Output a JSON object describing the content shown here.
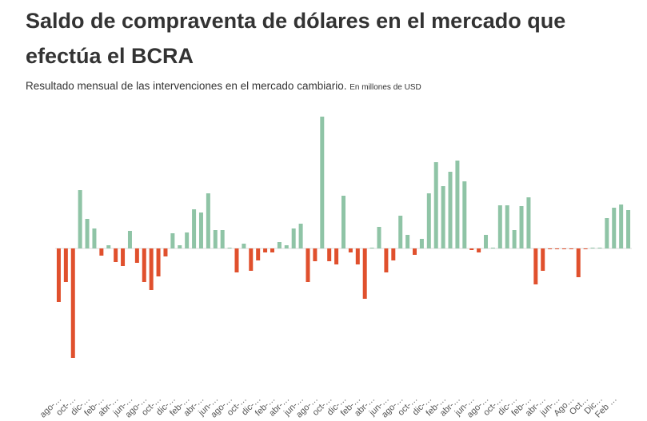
{
  "chart_data": {
    "type": "bar",
    "title": "Saldo de compraventa de dólares en el mercado que efectúa el BCRA",
    "subtitle": "Resultado  mensual de las intervenciones en el mercado cambiario.",
    "unit_note": "En millones de USD",
    "positive_color": "#8fc4a6",
    "negative_color": "#e0502d",
    "categories": [
      "ago-…",
      null,
      "oct-…",
      null,
      "dic-…",
      null,
      "feb-…",
      null,
      "abr-…",
      null,
      "jun-…",
      null,
      "ago-…",
      null,
      "oct-…",
      null,
      "dic-…",
      null,
      "feb-…",
      null,
      "abr-…",
      null,
      "jun-…",
      null,
      "ago-…",
      null,
      "oct-…",
      null,
      "dic-…",
      null,
      "feb-…",
      null,
      "abr-…",
      null,
      "jun-…",
      null,
      "ago-…",
      null,
      "oct-…",
      null,
      "dic-…",
      null,
      "feb-…",
      null,
      "abr-…",
      null,
      "jun-…",
      null,
      "ago-…",
      null,
      "oct-…",
      null,
      "dic-…",
      null,
      "feb-…",
      null,
      "abr-…",
      null,
      "jun-…",
      null,
      "ago-…",
      null,
      "oct-…",
      null,
      "dic-…",
      null,
      "feb-…",
      null,
      "abr-…",
      null,
      "jun-…",
      null,
      "Ago…",
      null,
      "Oct…",
      null,
      "Dic…",
      null,
      "Feb …",
      null,
      null
    ],
    "values": [
      -1340,
      -840,
      -2740,
      1460,
      740,
      500,
      -180,
      80,
      -340,
      -440,
      440,
      -360,
      -840,
      -1040,
      -700,
      -200,
      380,
      80,
      400,
      980,
      900,
      1380,
      460,
      460,
      20,
      -600,
      120,
      -560,
      -300,
      -100,
      -100,
      160,
      80,
      500,
      620,
      -840,
      -320,
      3300,
      -320,
      -400,
      1320,
      -100,
      -400,
      -1260,
      20,
      540,
      -600,
      -300,
      820,
      340,
      -160,
      240,
      1380,
      2160,
      1560,
      1920,
      2200,
      1680,
      -40,
      -100,
      340,
      20,
      1080,
      1080,
      460,
      1060,
      1280,
      -900,
      -560,
      -20,
      -20,
      -20,
      -20,
      -720,
      -20,
      20,
      20,
      760,
      1020,
      1100,
      960
    ]
  }
}
